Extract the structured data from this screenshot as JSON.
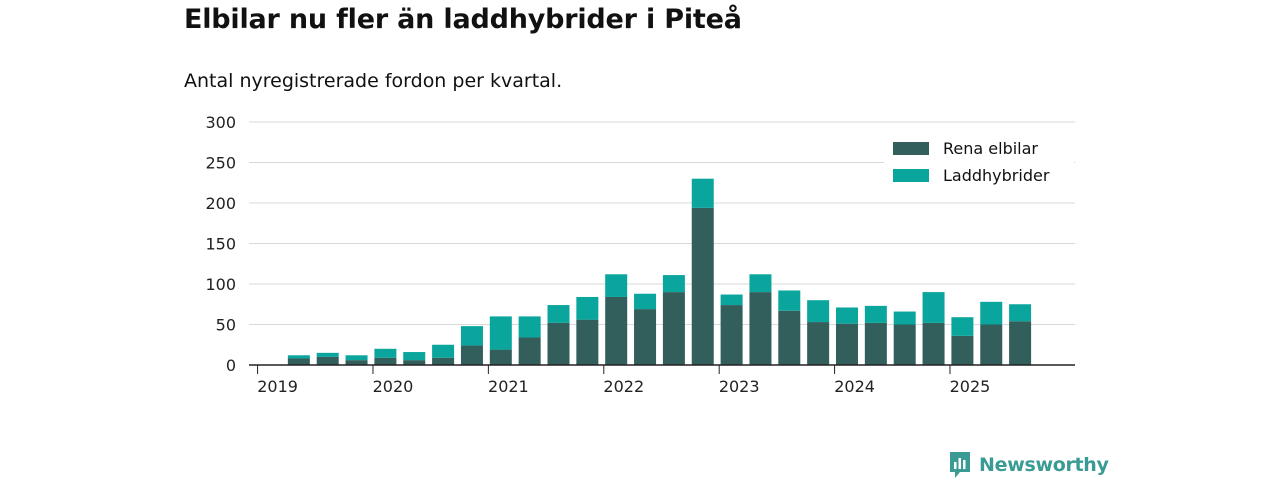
{
  "brand": {
    "name": "Newsworthy",
    "color": "#3a9b94"
  },
  "chart_data": {
    "type": "bar",
    "stacked": true,
    "title": "Elbilar nu fler än laddhybrider i Piteå",
    "subtitle": "Antal nyregistrerade fordon per kvartal.",
    "xlabel": "",
    "ylabel": "",
    "ylim": [
      0,
      300
    ],
    "yticks": [
      0,
      50,
      100,
      150,
      200,
      250,
      300
    ],
    "xticks": [
      "2019",
      "2020",
      "2021",
      "2022",
      "2023",
      "2024",
      "2025"
    ],
    "grid": true,
    "legend_position": "top-right",
    "categories": [
      "2019 Q1",
      "2019 Q2",
      "2019 Q3",
      "2019 Q4",
      "2020 Q1",
      "2020 Q2",
      "2020 Q3",
      "2020 Q4",
      "2021 Q1",
      "2021 Q2",
      "2021 Q3",
      "2021 Q4",
      "2022 Q1",
      "2022 Q2",
      "2022 Q3",
      "2022 Q4",
      "2023 Q1",
      "2023 Q2",
      "2023 Q3",
      "2023 Q4",
      "2024 Q1",
      "2024 Q2",
      "2024 Q3",
      "2024 Q4",
      "2025 Q1",
      "2025 Q2",
      "2025 Q3"
    ],
    "series": [
      {
        "name": "Rena elbilar",
        "color": "#325e5b",
        "values": [
          0,
          8,
          10,
          6,
          9,
          6,
          9,
          24,
          19,
          34,
          52,
          56,
          84,
          69,
          90,
          194,
          74,
          90,
          67,
          53,
          51,
          52,
          50,
          52,
          36,
          50,
          54
        ]
      },
      {
        "name": "Laddhybrider",
        "color": "#0aa59c",
        "values": [
          0,
          4,
          5,
          6,
          11,
          10,
          16,
          24,
          41,
          26,
          22,
          28,
          28,
          19,
          21,
          36,
          13,
          22,
          25,
          27,
          20,
          21,
          16,
          38,
          23,
          28,
          21
        ]
      }
    ]
  }
}
